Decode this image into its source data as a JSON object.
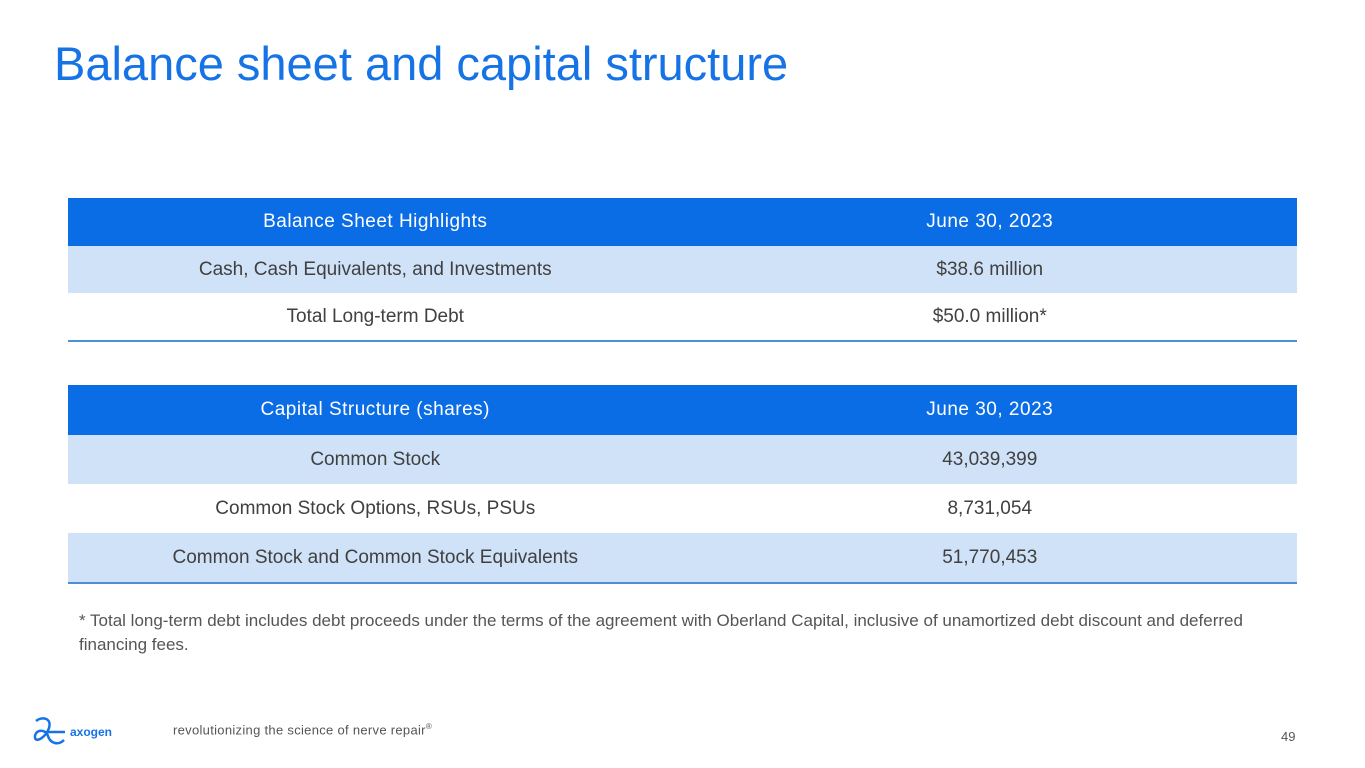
{
  "title": "Balance sheet and capital structure",
  "balance_sheet": {
    "headers": [
      "Balance Sheet Highlights",
      "June 30, 2023"
    ],
    "rows": [
      [
        "Cash, Cash Equivalents, and Investments",
        "$38.6 million"
      ],
      [
        "Total Long-term Debt",
        "$50.0 million*"
      ]
    ]
  },
  "capital_structure": {
    "headers": [
      "Capital Structure (shares)",
      "June 30, 2023"
    ],
    "rows": [
      [
        "Common Stock",
        "43,039,399"
      ],
      [
        "Common Stock Options, RSUs, PSUs",
        "8,731,054"
      ],
      [
        "Common Stock and Common Stock Equivalents",
        "51,770,453"
      ]
    ]
  },
  "footnote": "* Total long-term debt includes debt proceeds under the terms of the agreement with Oberland Capital, inclusive of unamortized debt discount and deferred financing fees.",
  "footer": {
    "logo_text": "axogen",
    "tagline": "revolutionizing the science of nerve repair",
    "registered": "®",
    "page_number": "49"
  }
}
